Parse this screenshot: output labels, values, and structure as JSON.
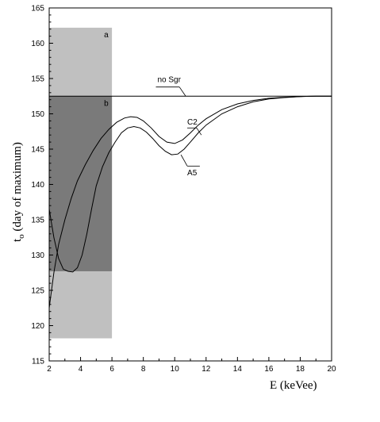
{
  "chart_data": {
    "type": "line",
    "xlabel": "E (keVee)",
    "ylabel_main": "t",
    "ylabel_sub": "o",
    "ylabel_rest": " (day of maximum)",
    "xlim": [
      2,
      20
    ],
    "ylim": [
      115,
      165
    ],
    "x_ticks": [
      2,
      4,
      6,
      8,
      10,
      12,
      14,
      16,
      18,
      20
    ],
    "y_ticks": [
      115,
      120,
      125,
      130,
      135,
      140,
      145,
      150,
      155,
      160,
      165
    ],
    "bands": [
      {
        "label": "a",
        "x0": 2,
        "x1": 6,
        "y0": 118.2,
        "y1": 162.2,
        "color": "#c0c0c0"
      },
      {
        "label": "b",
        "x0": 2,
        "x1": 6,
        "y0": 127.7,
        "y1": 152.5,
        "color": "#7a7a7a"
      }
    ],
    "series": [
      {
        "name": "no Sgr",
        "x": [
          2,
          20
        ],
        "y": [
          152.5,
          152.5
        ]
      },
      {
        "name": "C2",
        "x": [
          2,
          2.3,
          2.6,
          3.0,
          3.4,
          3.8,
          4.3,
          4.8,
          5.3,
          5.8,
          6.3,
          6.8,
          7.2,
          7.6,
          8.0,
          8.5,
          9.0,
          9.5,
          10.0,
          10.5,
          11.0,
          11.5,
          12.0,
          13.0,
          14.0,
          15.0,
          16.0,
          17.0,
          18.0,
          19.0,
          20.0
        ],
        "y": [
          122.5,
          127.5,
          131.5,
          135.0,
          138.0,
          140.5,
          142.8,
          144.8,
          146.5,
          147.8,
          148.8,
          149.4,
          149.6,
          149.5,
          149.0,
          148.0,
          146.8,
          146.0,
          145.8,
          146.3,
          147.3,
          148.4,
          149.3,
          150.6,
          151.4,
          151.9,
          152.2,
          152.35,
          152.45,
          152.5,
          152.5
        ]
      },
      {
        "name": "A5",
        "x": [
          2,
          2.3,
          2.6,
          2.9,
          3.2,
          3.5,
          3.8,
          4.1,
          4.4,
          4.7,
          5.0,
          5.4,
          5.8,
          6.2,
          6.6,
          7.0,
          7.4,
          7.8,
          8.2,
          8.6,
          9.0,
          9.4,
          9.8,
          10.2,
          10.6,
          11.0,
          11.5,
          12.0,
          13.0,
          14.0,
          15.0,
          16.0,
          17.0,
          18.0,
          19.0,
          20.0
        ],
        "y": [
          136.5,
          132.5,
          129.5,
          128.0,
          127.7,
          127.6,
          128.2,
          130.0,
          133.0,
          136.5,
          139.8,
          142.5,
          144.5,
          146.0,
          147.3,
          148.0,
          148.2,
          148.0,
          147.4,
          146.5,
          145.5,
          144.7,
          144.2,
          144.3,
          145.0,
          146.0,
          147.3,
          148.4,
          150.0,
          151.0,
          151.7,
          152.1,
          152.3,
          152.45,
          152.5,
          152.5
        ]
      }
    ],
    "annotations": [
      "no Sgr",
      "C2",
      "A5",
      "a",
      "b"
    ]
  }
}
